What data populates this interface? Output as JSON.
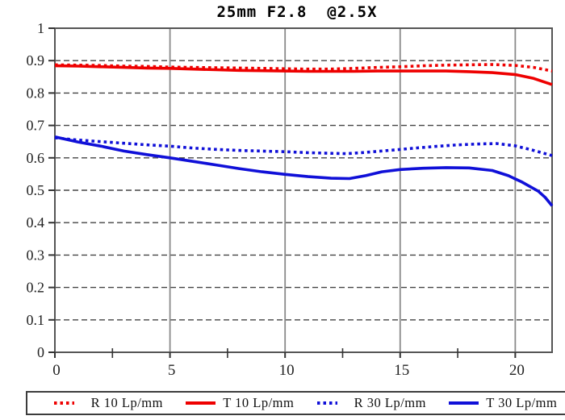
{
  "title": "25mm F2.8  @2.5X",
  "chart_data": {
    "type": "line",
    "title": "25mm F2.8 @2.5X",
    "xlabel": "",
    "ylabel": "",
    "xlim": [
      0,
      21.6
    ],
    "ylim": [
      0,
      1
    ],
    "xticks": [
      {
        "v": 0,
        "label": "0"
      },
      {
        "v": 5,
        "label": "5"
      },
      {
        "v": 10,
        "label": "10"
      },
      {
        "v": 15,
        "label": "15"
      },
      {
        "v": 20,
        "label": "20"
      }
    ],
    "minor_xticks": [
      2.5,
      7.5,
      12.5,
      17.5
    ],
    "yticks": [
      {
        "v": 0,
        "label": "0"
      },
      {
        "v": 0.1,
        "label": "0.1"
      },
      {
        "v": 0.2,
        "label": "0.2"
      },
      {
        "v": 0.3,
        "label": "0.3"
      },
      {
        "v": 0.4,
        "label": "0.4"
      },
      {
        "v": 0.5,
        "label": "0.5"
      },
      {
        "v": 0.6,
        "label": "0.6"
      },
      {
        "v": 0.7,
        "label": "0.7"
      },
      {
        "v": 0.8,
        "label": "0.8"
      },
      {
        "v": 0.9,
        "label": "0.9"
      },
      {
        "v": 1,
        "label": "1"
      }
    ],
    "grid": {
      "horizontal": "dashed",
      "vertical": "solid"
    },
    "legend_position": "bottom",
    "colors": {
      "red": "#ee0000",
      "blue": "#1010d8",
      "grid_dashed": "#444444",
      "grid_solid": "#8a8a8a",
      "border": "#555555",
      "tick": "#333333",
      "text": "#000000"
    },
    "series": [
      {
        "name": "R 10 Lp/mm",
        "color": "#ee0000",
        "style": "dotted",
        "points": [
          [
            0,
            0.887
          ],
          [
            1,
            0.886
          ],
          [
            2,
            0.885
          ],
          [
            3,
            0.883
          ],
          [
            4,
            0.882
          ],
          [
            5,
            0.88
          ],
          [
            6,
            0.879
          ],
          [
            7,
            0.878
          ],
          [
            8,
            0.877
          ],
          [
            9,
            0.876
          ],
          [
            10,
            0.875
          ],
          [
            11,
            0.874
          ],
          [
            12,
            0.874
          ],
          [
            13,
            0.876
          ],
          [
            14,
            0.879
          ],
          [
            15,
            0.881
          ],
          [
            16,
            0.884
          ],
          [
            17,
            0.886
          ],
          [
            18,
            0.887
          ],
          [
            19,
            0.888
          ],
          [
            20,
            0.885
          ],
          [
            20.8,
            0.879
          ],
          [
            21.6,
            0.868
          ]
        ]
      },
      {
        "name": "T 10 Lp/mm",
        "color": "#ee0000",
        "style": "solid",
        "points": [
          [
            0,
            0.884
          ],
          [
            1,
            0.883
          ],
          [
            2,
            0.881
          ],
          [
            3,
            0.879
          ],
          [
            4,
            0.877
          ],
          [
            5,
            0.876
          ],
          [
            6,
            0.874
          ],
          [
            7,
            0.872
          ],
          [
            8,
            0.87
          ],
          [
            9,
            0.869
          ],
          [
            10,
            0.868
          ],
          [
            11,
            0.867
          ],
          [
            12,
            0.867
          ],
          [
            13,
            0.867
          ],
          [
            14,
            0.868
          ],
          [
            15,
            0.868
          ],
          [
            16,
            0.868
          ],
          [
            17,
            0.868
          ],
          [
            18,
            0.866
          ],
          [
            19,
            0.863
          ],
          [
            20,
            0.857
          ],
          [
            20.8,
            0.845
          ],
          [
            21.6,
            0.826
          ]
        ]
      },
      {
        "name": "R 30 Lp/mm",
        "color": "#1010d8",
        "style": "dotted",
        "points": [
          [
            0,
            0.662
          ],
          [
            1,
            0.655
          ],
          [
            2,
            0.65
          ],
          [
            3,
            0.645
          ],
          [
            4,
            0.64
          ],
          [
            5,
            0.636
          ],
          [
            6,
            0.63
          ],
          [
            7,
            0.626
          ],
          [
            8,
            0.623
          ],
          [
            9,
            0.621
          ],
          [
            10,
            0.619
          ],
          [
            11,
            0.616
          ],
          [
            12,
            0.614
          ],
          [
            12.7,
            0.613
          ],
          [
            13.5,
            0.617
          ],
          [
            14.5,
            0.623
          ],
          [
            15.5,
            0.629
          ],
          [
            16.5,
            0.635
          ],
          [
            17.5,
            0.64
          ],
          [
            18.5,
            0.643
          ],
          [
            19.2,
            0.644
          ],
          [
            20,
            0.637
          ],
          [
            20.8,
            0.623
          ],
          [
            21.6,
            0.607
          ]
        ]
      },
      {
        "name": "T 30 Lp/mm",
        "color": "#1010d8",
        "style": "solid",
        "points": [
          [
            0,
            0.665
          ],
          [
            1,
            0.649
          ],
          [
            2,
            0.636
          ],
          [
            3,
            0.621
          ],
          [
            4,
            0.61
          ],
          [
            5,
            0.6
          ],
          [
            6,
            0.589
          ],
          [
            7,
            0.578
          ],
          [
            8,
            0.567
          ],
          [
            9,
            0.557
          ],
          [
            10,
            0.549
          ],
          [
            11,
            0.542
          ],
          [
            12,
            0.537
          ],
          [
            12.8,
            0.536
          ],
          [
            13.5,
            0.545
          ],
          [
            14.2,
            0.557
          ],
          [
            15,
            0.564
          ],
          [
            16,
            0.568
          ],
          [
            17,
            0.57
          ],
          [
            18,
            0.569
          ],
          [
            19,
            0.561
          ],
          [
            19.7,
            0.545
          ],
          [
            20.3,
            0.525
          ],
          [
            21,
            0.497
          ],
          [
            21.3,
            0.478
          ],
          [
            21.6,
            0.452
          ]
        ]
      }
    ]
  },
  "legend": {
    "items": [
      {
        "label": "R 10 Lp/mm"
      },
      {
        "label": "T 10 Lp/mm"
      },
      {
        "label": "R 30 Lp/mm"
      },
      {
        "label": "T 30 Lp/mm"
      }
    ]
  }
}
